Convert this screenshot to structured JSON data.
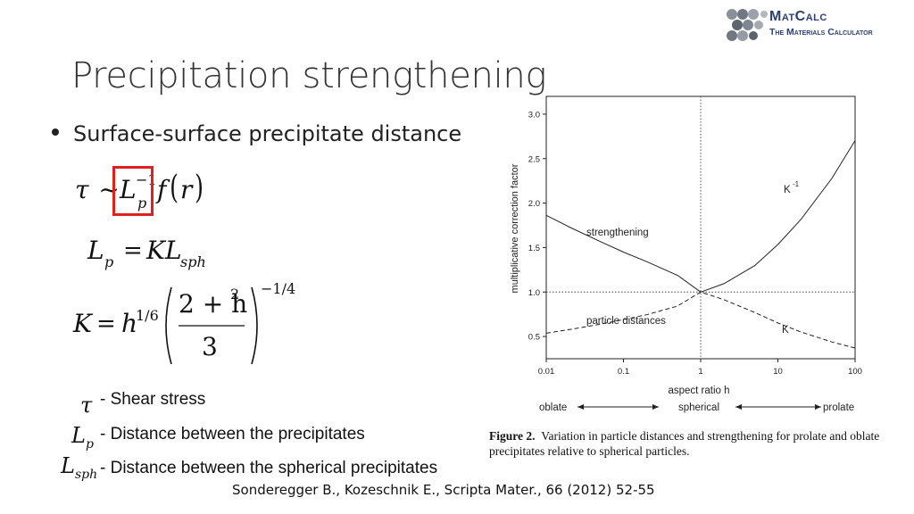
{
  "logo": {
    "line1": "MatCalc",
    "line2": "The Materials Calculator"
  },
  "title": "Precipitation strengthening",
  "bullet": "Surface-surface precipitate distance",
  "equations": {
    "eq1": {
      "tau": "τ",
      "sim": "~",
      "L": "L",
      "exp": "−1",
      "sub": "p",
      "f": "f",
      "r": "r"
    },
    "eq2": {
      "L": "L",
      "sub": "p",
      "eq": "=",
      "K": "K",
      "L2": "L",
      "sub2": "sph"
    },
    "eq3": {
      "K": "K",
      "eq": "=",
      "h": "h",
      "hexp": "1/6",
      "num": "2 + h",
      "numexp": "2",
      "den": "3",
      "outer_exp": "−1/4"
    }
  },
  "legend": [
    {
      "symbol": "τ",
      "sub": "",
      "text": "- Shear stress"
    },
    {
      "symbol": "L",
      "sub": "p",
      "text": "- Distance between the precipitates"
    },
    {
      "symbol": "L",
      "sub": "sph",
      "text": "- Distance between the spherical precipitates"
    }
  ],
  "citation": "Sonderegger B., Kozeschnik E., Scripta Mater., 66 (2012) 52-55",
  "figure_caption": {
    "label": "Figure 2.",
    "text": "Variation in particle distances and strengthening for prolate and oblate precipitates relative to spherical particles."
  },
  "chart_data": {
    "type": "line",
    "xscale": "log",
    "xlim": [
      0.01,
      100
    ],
    "ylim": [
      0.25,
      3.2
    ],
    "xticks": [
      0.01,
      0.1,
      1,
      10,
      100
    ],
    "xtick_labels": [
      "0.01",
      "0.1",
      "1",
      "10",
      "100"
    ],
    "yticks": [
      0.5,
      1.0,
      1.5,
      2.0,
      2.5,
      3.0
    ],
    "ytick_labels": [
      "0.5",
      "1.0",
      "1.5",
      "2.0",
      "2.5",
      "3.0"
    ],
    "xlabel": "aspect ratio h",
    "ylabel": "multiplicative correction factor",
    "reference_lines": {
      "x": 1,
      "y": 1
    },
    "series": [
      {
        "name": "K",
        "style": "dashed",
        "x": [
          0.01,
          0.02,
          0.05,
          0.1,
          0.2,
          0.5,
          1,
          2,
          5,
          10,
          20,
          50,
          100
        ],
        "y": [
          0.537,
          0.578,
          0.638,
          0.69,
          0.745,
          0.842,
          1.0,
          0.914,
          0.771,
          0.652,
          0.55,
          0.439,
          0.37
        ]
      },
      {
        "name": "K -1",
        "style": "solid",
        "x": [
          0.01,
          0.02,
          0.05,
          0.1,
          0.2,
          0.5,
          1,
          2,
          5,
          10,
          20,
          50,
          100
        ],
        "y": [
          1.862,
          1.73,
          1.567,
          1.449,
          1.342,
          1.188,
          1.0,
          1.094,
          1.297,
          1.534,
          1.818,
          2.278,
          2.703
        ]
      }
    ],
    "annotations": {
      "strengthening": "strengthening",
      "particle_distances": "particle distances",
      "K_label": "K",
      "Kinv_label": "K",
      "Kinv_exp": "-1",
      "oblate": "oblate",
      "spherical": "spherical",
      "prolate": "prolate"
    }
  }
}
